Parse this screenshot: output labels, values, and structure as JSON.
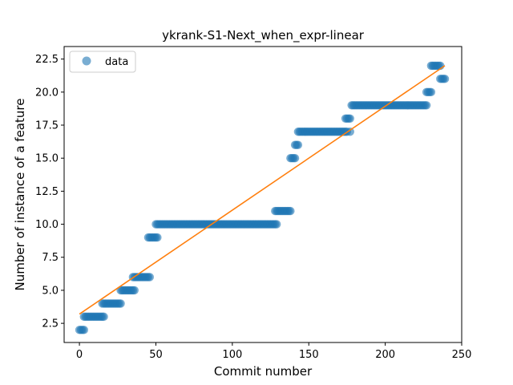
{
  "chart_data": {
    "type": "scatter",
    "title": "ykrank-S1-Next_when_expr-linear",
    "xlabel": "Commit number",
    "ylabel": "Number of instance of a feature",
    "xlim": [
      -10,
      250
    ],
    "ylim": [
      1.05,
      23.45
    ],
    "xticks": [
      "0",
      "50",
      "100",
      "150",
      "200",
      "250"
    ],
    "xtick_values": [
      0,
      50,
      100,
      150,
      200,
      250
    ],
    "yticks": [
      "2.5",
      "5.0",
      "7.5",
      "10.0",
      "12.5",
      "15.0",
      "17.5",
      "20.0",
      "22.5"
    ],
    "ytick_values": [
      2.5,
      5.0,
      7.5,
      10.0,
      12.5,
      15.0,
      17.5,
      20.0,
      22.5
    ],
    "legend": {
      "label": "data",
      "placement": "upper-left"
    },
    "colors": {
      "points": "#1f77b4",
      "fit": "#ff7f0e"
    },
    "series": [
      {
        "name": "data",
        "kind": "points",
        "runs": [
          {
            "x_start": 0,
            "x_end": 3,
            "y": 2
          },
          {
            "x_start": 3,
            "x_end": 16,
            "y": 3
          },
          {
            "x_start": 15,
            "x_end": 27,
            "y": 4
          },
          {
            "x_start": 27,
            "x_end": 36,
            "y": 5
          },
          {
            "x_start": 35,
            "x_end": 46,
            "y": 6
          },
          {
            "x_start": 45,
            "x_end": 51,
            "y": 9
          },
          {
            "x_start": 50,
            "x_end": 129,
            "y": 10
          },
          {
            "x_start": 128,
            "x_end": 138,
            "y": 11
          },
          {
            "x_start": 138,
            "x_end": 141,
            "y": 15
          },
          {
            "x_start": 141,
            "x_end": 143,
            "y": 16
          },
          {
            "x_start": 143,
            "x_end": 175,
            "y": 17
          },
          {
            "x_start": 174,
            "x_end": 177,
            "y": 18
          },
          {
            "x_start": 177,
            "x_end": 177,
            "y": 17
          },
          {
            "x_start": 178,
            "x_end": 227,
            "y": 19
          },
          {
            "x_start": 227,
            "x_end": 230,
            "y": 20
          },
          {
            "x_start": 230,
            "x_end": 236,
            "y": 22
          },
          {
            "x_start": 236,
            "x_end": 239,
            "y": 21
          }
        ]
      },
      {
        "name": "",
        "kind": "line",
        "x": [
          0,
          239
        ],
        "y": [
          3.2,
          22.0
        ]
      }
    ]
  }
}
